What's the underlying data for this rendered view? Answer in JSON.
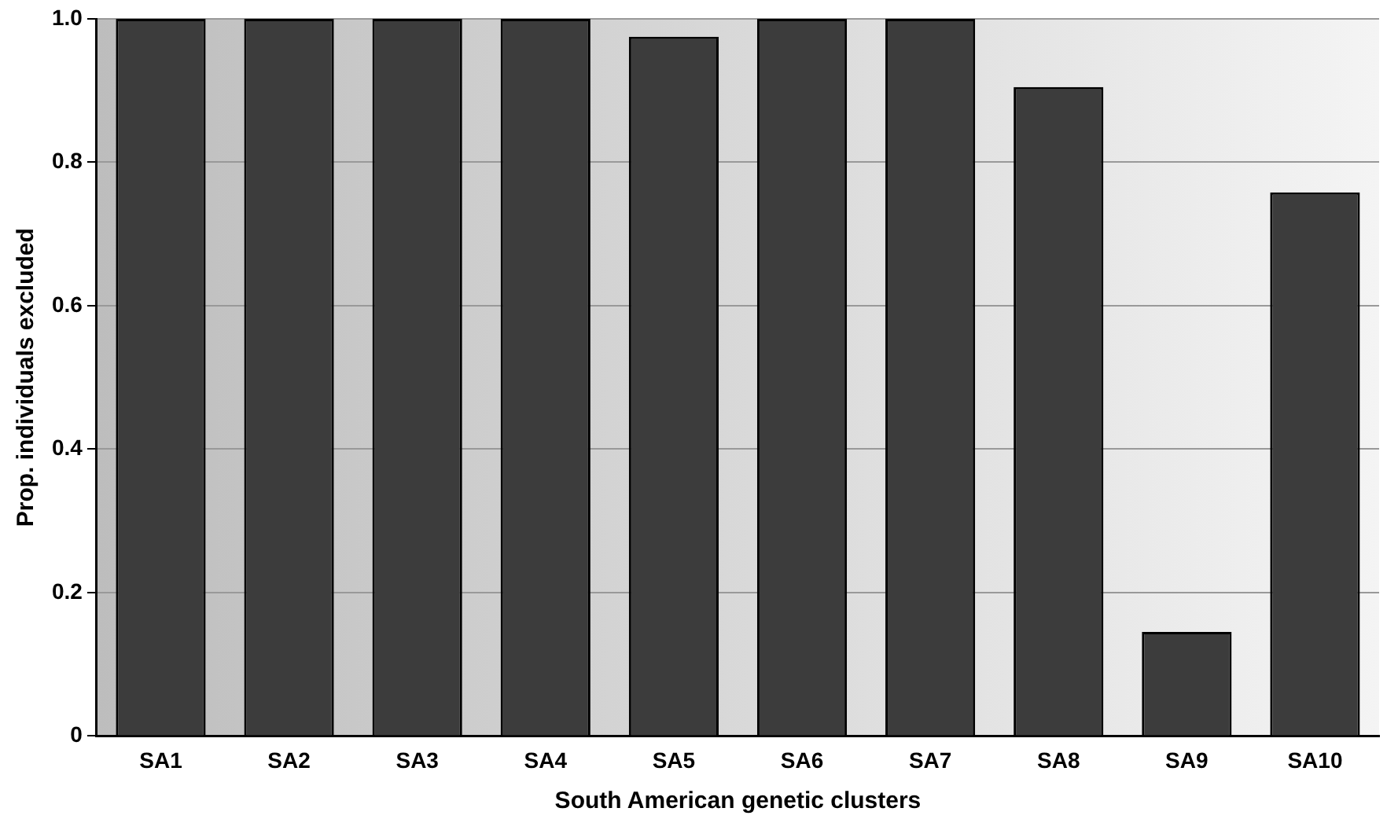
{
  "chart_data": {
    "type": "bar",
    "xlabel": "South American genetic clusters",
    "ylabel": "Prop. individuals excluded",
    "categories": [
      "SA1",
      "SA2",
      "SA3",
      "SA4",
      "SA5",
      "SA6",
      "SA7",
      "SA8",
      "SA9",
      "SA10"
    ],
    "values": [
      1,
      1,
      1,
      1,
      0.975,
      1,
      1,
      0.905,
      0.145,
      0.758
    ],
    "color": "#3c3c3c",
    "ylim": [
      0,
      1
    ],
    "yticks": [
      0,
      {
        "value": 0.2,
        "label": "0.2"
      },
      {
        "value": 0.4,
        "label": "0.4"
      },
      {
        "value": 0.6,
        "label": "0.6"
      },
      {
        "value": 0.8,
        "label": "0.8"
      },
      {
        "value": 1,
        "label": "1.0"
      }
    ],
    "grid": "y"
  }
}
